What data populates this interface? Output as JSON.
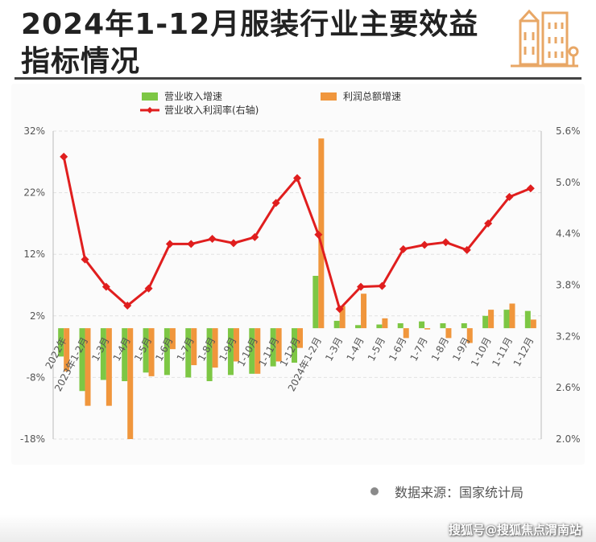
{
  "header": {
    "title": "2024年1-12月服装行业主要效益指标情况",
    "logo_icon": "building-icon"
  },
  "colors": {
    "revenue_bar": "#7dc744",
    "profit_bar": "#f0963c",
    "margin_line": "#e01e1e",
    "accent": "#f0963c"
  },
  "chart_data": {
    "type": "bar",
    "categories": [
      "2022年",
      "2023年1-2月",
      "1-3月",
      "1-4月",
      "1-5月",
      "1-6月",
      "1-7月",
      "1-8月",
      "1-9月",
      "1-10月",
      "1-11月",
      "1-12月",
      "2024年1-2月",
      "1-3月",
      "1-4月",
      "1-5月",
      "1-6月",
      "1-7月",
      "1-8月",
      "1-9月",
      "1-10月",
      "1-11月",
      "1-12月"
    ],
    "series": [
      {
        "name": "营业收入增速",
        "type": "bar",
        "axis": "left",
        "values": [
          -4.6,
          -10.2,
          -8.4,
          -8.6,
          -7.2,
          -7.6,
          -8.0,
          -8.6,
          -7.6,
          -7.4,
          -6.2,
          -5.6,
          8.5,
          1.2,
          0.5,
          0.6,
          0.8,
          1.1,
          0.8,
          0.8,
          2.0,
          3.0,
          2.8
        ]
      },
      {
        "name": "利润总额增速",
        "type": "bar",
        "axis": "left",
        "values": [
          -7.0,
          -12.6,
          -12.6,
          -18.0,
          -7.8,
          -3.4,
          -6.0,
          -6.4,
          -5.4,
          -7.4,
          -5.4,
          -3.2,
          30.8,
          3.6,
          5.6,
          1.6,
          -1.6,
          -0.2,
          -1.6,
          -2.4,
          3.0,
          4.0,
          1.4
        ]
      },
      {
        "name": "营业收入利润率(右轴)",
        "type": "line",
        "axis": "right",
        "values": [
          5.3,
          4.1,
          3.78,
          3.56,
          3.76,
          4.28,
          4.28,
          4.34,
          4.29,
          4.36,
          4.76,
          5.05,
          4.39,
          3.52,
          3.78,
          3.79,
          4.22,
          4.27,
          4.3,
          4.21,
          4.52,
          4.83,
          4.93
        ]
      }
    ],
    "left_axis": {
      "min": -18,
      "max": 32,
      "ticks": [
        "32%",
        "22%",
        "12%",
        "2%",
        "-8%",
        "-18%"
      ],
      "tick_values": [
        32,
        22,
        12,
        2,
        -8,
        -18
      ]
    },
    "right_axis": {
      "min": 2.0,
      "max": 5.6,
      "ticks": [
        "5.6%",
        "5.0%",
        "4.4%",
        "3.8%",
        "3.2%",
        "2.6%",
        "2.0%"
      ],
      "tick_values": [
        5.6,
        5.0,
        4.4,
        3.8,
        3.2,
        2.6,
        2.0
      ]
    },
    "grid": true,
    "legend_position": "top"
  },
  "footer": {
    "source_text": "数据来源：国家统计局",
    "credit": "搜狐号@搜狐焦点渭南站"
  }
}
